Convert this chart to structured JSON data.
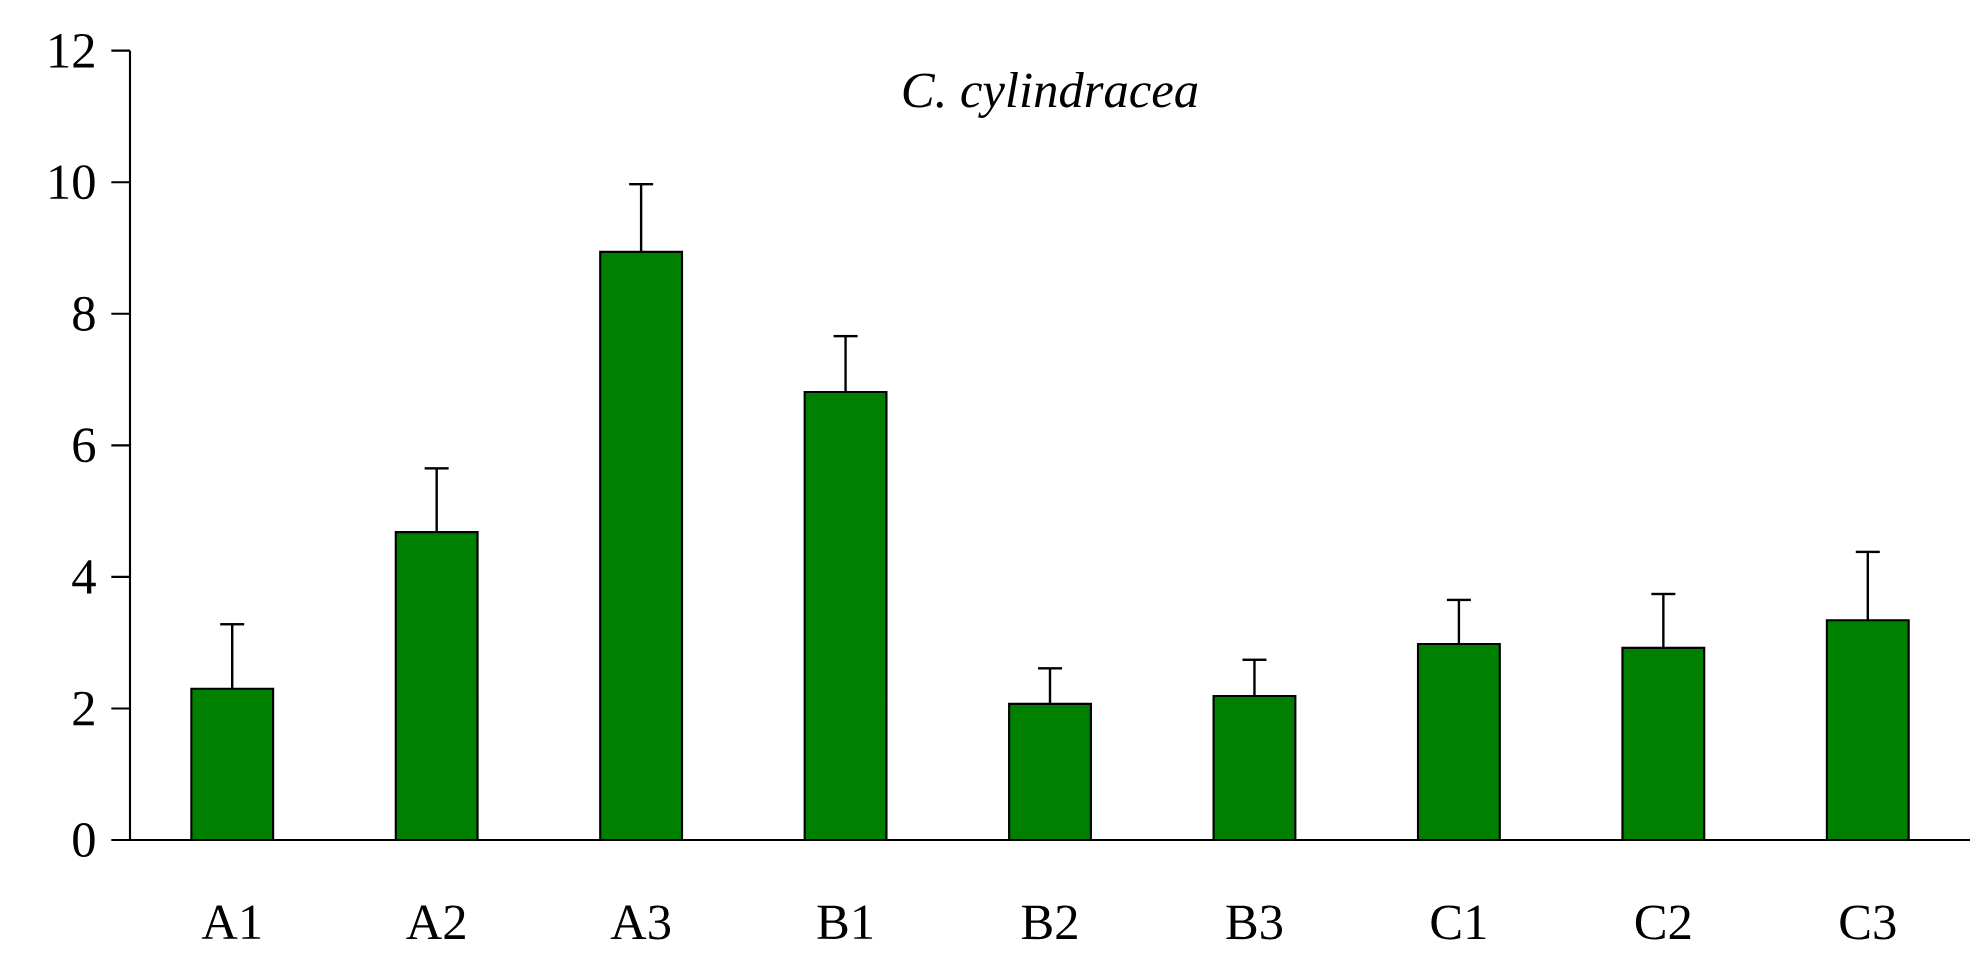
{
  "chart_data": {
    "type": "bar",
    "title": "C. cylindracea",
    "categories": [
      "A1",
      "A2",
      "A3",
      "B1",
      "B2",
      "B3",
      "C1",
      "C2",
      "C3"
    ],
    "values": [
      2.3,
      4.68,
      8.94,
      6.81,
      2.07,
      2.19,
      2.98,
      2.92,
      3.34
    ],
    "errors": [
      [
        2.3,
        3.28
      ],
      [
        4.68,
        5.65
      ],
      [
        8.94,
        9.97
      ],
      [
        6.81,
        7.66
      ],
      [
        2.07,
        2.61
      ],
      [
        2.19,
        2.74
      ],
      [
        2.98,
        3.65
      ],
      [
        2.92,
        3.74
      ],
      [
        3.34,
        4.38
      ]
    ],
    "color": "#008000",
    "ylim": [
      0,
      12
    ],
    "yticks": [
      0,
      2,
      4,
      6,
      8,
      10,
      12
    ],
    "grid": false
  }
}
